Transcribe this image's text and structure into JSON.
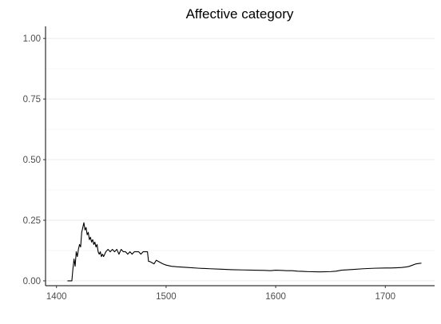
{
  "chart_data": {
    "type": "line",
    "title": "Affective category",
    "xlabel": "",
    "ylabel": "",
    "xlim": [
      1390,
      1745
    ],
    "ylim": [
      -0.02,
      1.05
    ],
    "x_ticks": [
      1400,
      1500,
      1600,
      1700
    ],
    "x_tick_labels": [
      "1400",
      "1500",
      "1600",
      "1700"
    ],
    "y_ticks": [
      0.0,
      0.25,
      0.5,
      0.75,
      1.0
    ],
    "y_tick_labels": [
      "0.00",
      "0.25",
      "0.50",
      "0.75",
      "1.00"
    ],
    "y_minor_ticks": [
      0.125,
      0.375,
      0.625,
      0.875
    ],
    "grid": "horizontal",
    "legend": "none",
    "colors": {
      "line": "#000000",
      "grid": "#ebebeb",
      "axis": "#000000",
      "tick_text": "#4d4d4d"
    },
    "series": [
      {
        "x": [
          1410,
          1414,
          1415,
          1416,
          1417,
          1418,
          1419,
          1420,
          1421,
          1422,
          1423,
          1424,
          1425,
          1426,
          1427,
          1428,
          1429,
          1430,
          1431,
          1432,
          1433,
          1434,
          1435,
          1436,
          1437,
          1438,
          1439,
          1440,
          1441,
          1442,
          1443,
          1445,
          1447,
          1449,
          1451,
          1453,
          1455,
          1457,
          1459,
          1461,
          1463,
          1465,
          1467,
          1469,
          1471,
          1473,
          1475,
          1477,
          1479,
          1481,
          1483,
          1484,
          1485,
          1487,
          1489,
          1491,
          1493,
          1495,
          1497,
          1500,
          1505,
          1510,
          1520,
          1530,
          1540,
          1550,
          1560,
          1570,
          1580,
          1590,
          1595,
          1600,
          1605,
          1610,
          1615,
          1620,
          1625,
          1630,
          1640,
          1650,
          1655,
          1660,
          1670,
          1680,
          1690,
          1700,
          1705,
          1710,
          1715,
          1720,
          1722,
          1725,
          1728,
          1731,
          1733
        ],
        "values": [
          0.0,
          0.0,
          0.05,
          0.09,
          0.06,
          0.12,
          0.1,
          0.13,
          0.15,
          0.14,
          0.2,
          0.22,
          0.24,
          0.21,
          0.22,
          0.19,
          0.2,
          0.17,
          0.18,
          0.16,
          0.17,
          0.15,
          0.16,
          0.14,
          0.15,
          0.12,
          0.11,
          0.12,
          0.1,
          0.11,
          0.1,
          0.12,
          0.13,
          0.12,
          0.13,
          0.12,
          0.13,
          0.11,
          0.13,
          0.12,
          0.12,
          0.11,
          0.12,
          0.11,
          0.12,
          0.12,
          0.12,
          0.11,
          0.12,
          0.12,
          0.12,
          0.08,
          0.08,
          0.075,
          0.07,
          0.085,
          0.08,
          0.075,
          0.07,
          0.065,
          0.06,
          0.058,
          0.055,
          0.052,
          0.05,
          0.048,
          0.046,
          0.045,
          0.044,
          0.043,
          0.042,
          0.044,
          0.043,
          0.042,
          0.042,
          0.04,
          0.039,
          0.038,
          0.037,
          0.038,
          0.04,
          0.044,
          0.047,
          0.05,
          0.052,
          0.053,
          0.053,
          0.054,
          0.055,
          0.058,
          0.06,
          0.065,
          0.07,
          0.072,
          0.073
        ]
      }
    ]
  }
}
